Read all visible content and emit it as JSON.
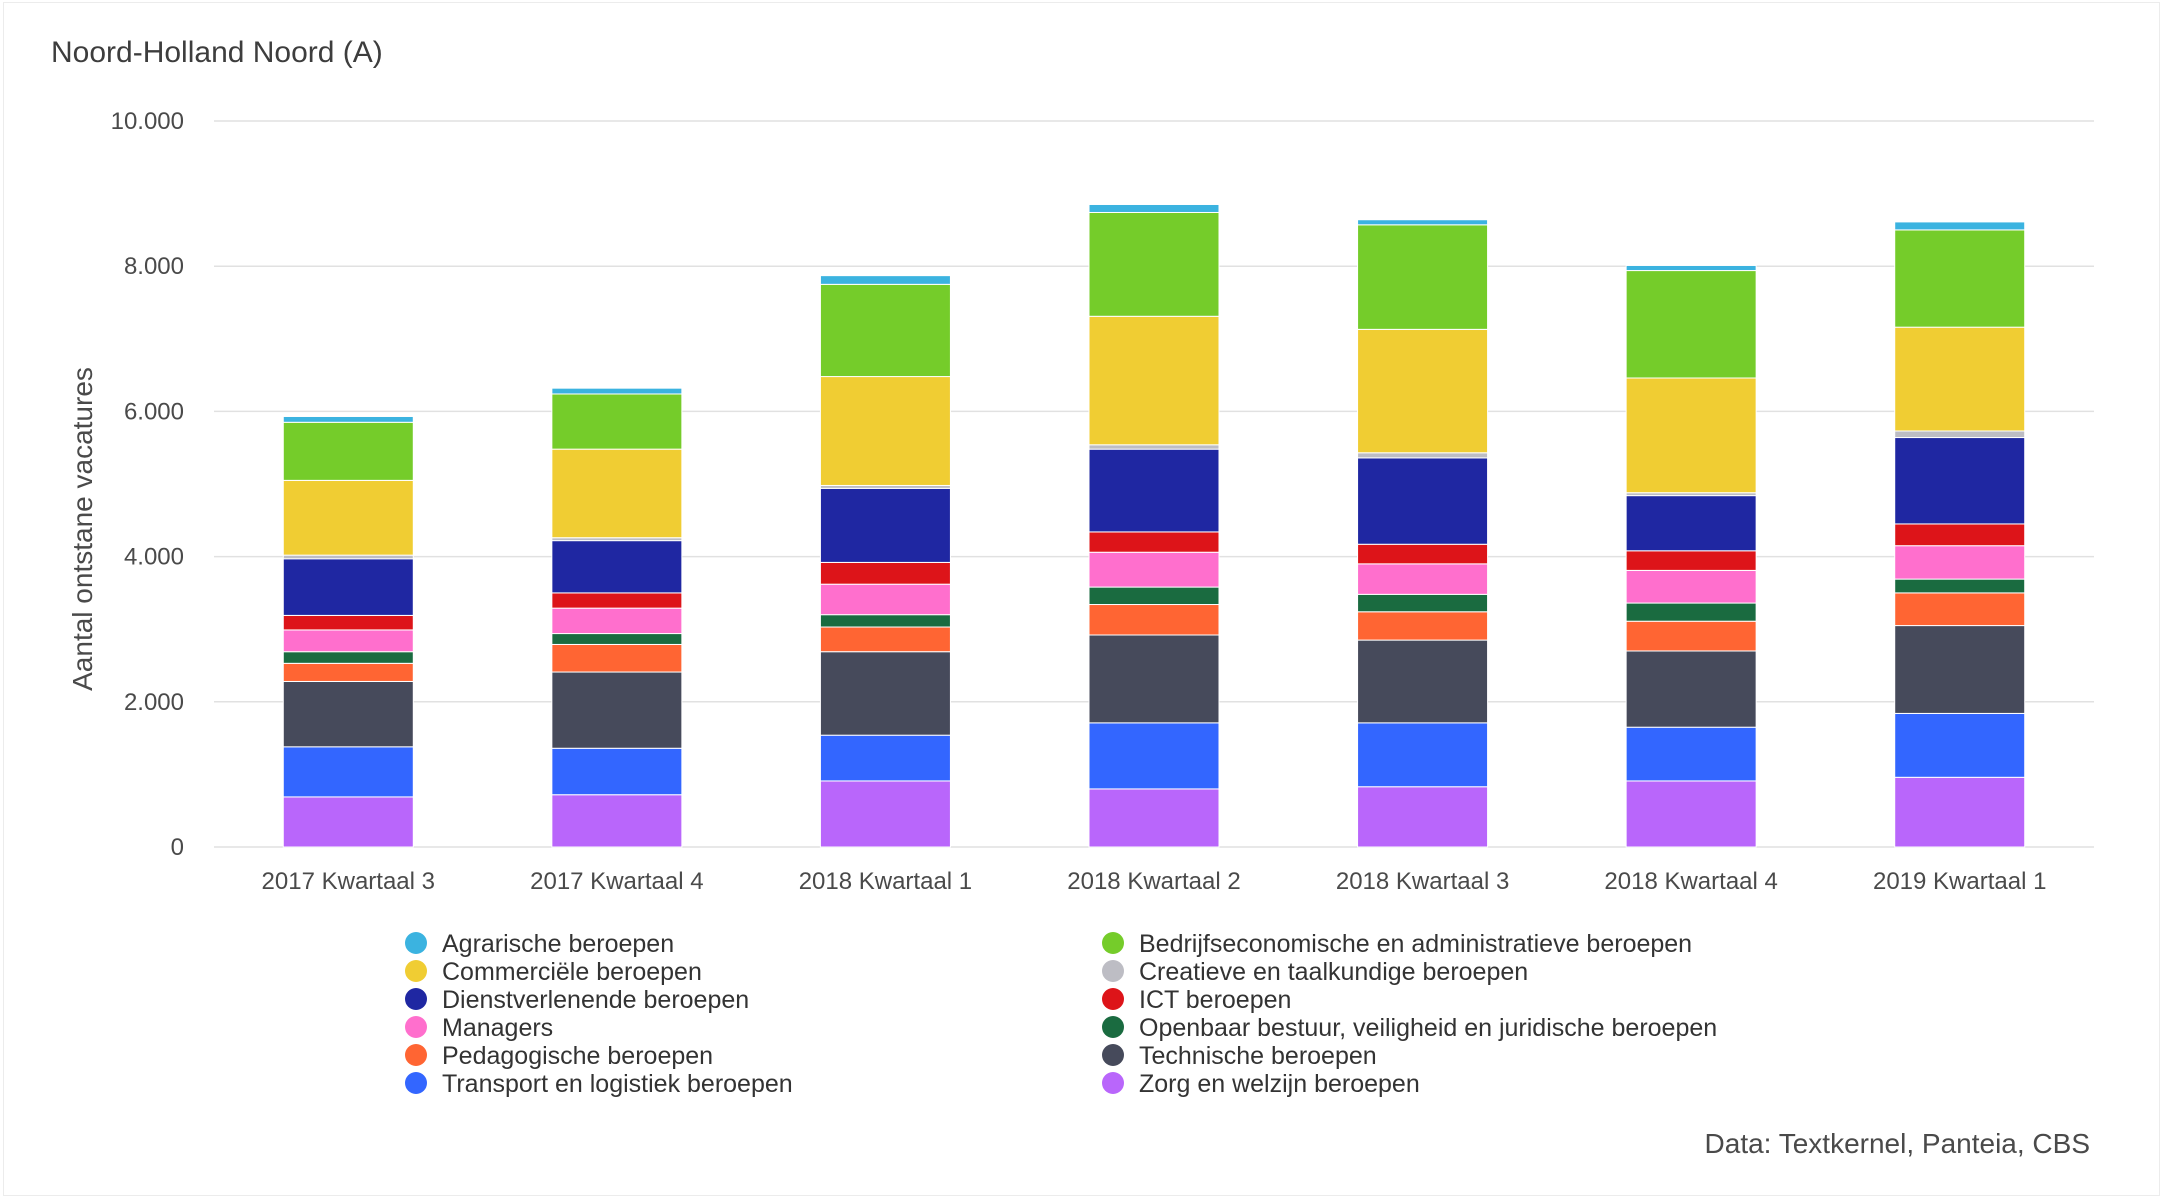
{
  "chart_data": {
    "type": "bar",
    "stacked": true,
    "title": "Noord-Holland Noord (A)",
    "ylabel": "Aantal ontstane vacatures",
    "xlabel": "",
    "credit": "Data: Textkernel, Panteia, CBS",
    "ylim": [
      0,
      10000
    ],
    "yticks": [
      0,
      2000,
      4000,
      6000,
      8000,
      10000
    ],
    "ytick_labels": [
      "0",
      "2.000",
      "4.000",
      "6.000",
      "8.000",
      "10.000"
    ],
    "grid": true,
    "legend_position": "bottom",
    "categories": [
      "2017 Kwartaal 3",
      "2017 Kwartaal 4",
      "2018 Kwartaal 1",
      "2018 Kwartaal 2",
      "2018 Kwartaal 3",
      "2018 Kwartaal 4",
      "2019 Kwartaal 1"
    ],
    "series": [
      {
        "name": "Zorg en welzijn beroepen",
        "color": "#b966fb",
        "values": [
          690,
          720,
          910,
          800,
          830,
          910,
          960
        ]
      },
      {
        "name": "Transport en logistiek beroepen",
        "color": "#3366ff",
        "values": [
          690,
          640,
          630,
          910,
          880,
          740,
          880
        ]
      },
      {
        "name": "Technische beroepen",
        "color": "#464a5b",
        "values": [
          900,
          1050,
          1150,
          1210,
          1140,
          1050,
          1210
        ]
      },
      {
        "name": "Pedagogische beroepen",
        "color": "#ff6533",
        "values": [
          250,
          380,
          340,
          420,
          390,
          410,
          450
        ]
      },
      {
        "name": "Openbaar bestuur, veiligheid en juridische beroepen",
        "color": "#1a6b40",
        "values": [
          160,
          150,
          170,
          240,
          240,
          250,
          190
        ]
      },
      {
        "name": "Managers",
        "color": "#ff6fcd",
        "values": [
          300,
          350,
          420,
          480,
          420,
          450,
          460
        ]
      },
      {
        "name": "ICT beroepen",
        "color": "#dd1419",
        "values": [
          200,
          210,
          300,
          280,
          270,
          270,
          300
        ]
      },
      {
        "name": "Dienstverlenende beroepen",
        "color": "#1f27a2",
        "values": [
          780,
          720,
          1020,
          1140,
          1190,
          760,
          1190
        ]
      },
      {
        "name": "Creatieve en taalkundige beroepen",
        "color": "#bdbdc4",
        "values": [
          50,
          40,
          40,
          60,
          70,
          40,
          90
        ]
      },
      {
        "name": "Commerciële beroepen",
        "color": "#f0cd33",
        "values": [
          1030,
          1220,
          1500,
          1770,
          1700,
          1580,
          1430
        ]
      },
      {
        "name": "Bedrijfseconomische en administratieve beroepen",
        "color": "#75cc2a",
        "values": [
          800,
          760,
          1270,
          1430,
          1440,
          1480,
          1340
        ]
      },
      {
        "name": "Agrarische beroepen",
        "color": "#3bb3e0",
        "values": [
          80,
          80,
          120,
          110,
          70,
          70,
          110
        ]
      }
    ],
    "legend_order": [
      "Agrarische beroepen",
      "Bedrijfseconomische en administratieve beroepen",
      "Commerciële beroepen",
      "Creatieve en taalkundige beroepen",
      "Dienstverlenende beroepen",
      "ICT beroepen",
      "Managers",
      "Openbaar bestuur, veiligheid en juridische beroepen",
      "Pedagogische beroepen",
      "Technische beroepen",
      "Transport en logistiek beroepen",
      "Zorg en welzijn beroepen"
    ]
  }
}
